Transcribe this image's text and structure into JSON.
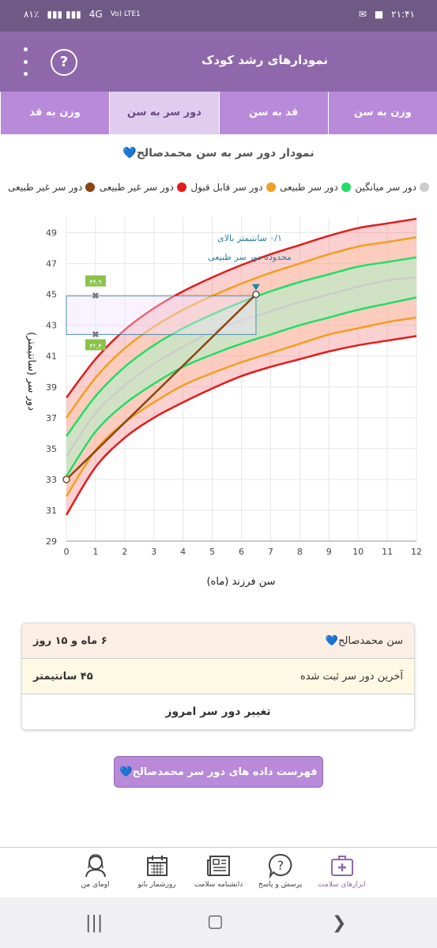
{
  "status": {
    "battery": "٨١٪",
    "network": "4G",
    "carrier": "Vo) LTE1",
    "time": "۲۱:۴۱"
  },
  "appbar": {
    "title": "نمودارهای رشد کودک",
    "help_label": "?"
  },
  "tabs": [
    {
      "label": "وزن به سن",
      "active": false
    },
    {
      "label": "قد به سن",
      "active": false
    },
    {
      "label": "دور سر به سن",
      "active": true
    },
    {
      "label": "وزن به قد",
      "active": false
    }
  ],
  "chart_title": "نمودار دور سر به سن محمدصالح💙",
  "legend": [
    {
      "label": "دور سر غیر طبیعی",
      "color": "#8b4513"
    },
    {
      "label": "دور سر غیر طبیعی",
      "color": "#e31b1b"
    },
    {
      "label": "دور سر قابل قبول",
      "color": "#f0a020"
    },
    {
      "label": "دور سر طبیعی",
      "color": "#22dd66"
    },
    {
      "label": "دور سر میانگین",
      "color": "#cccccc"
    }
  ],
  "chart_data": {
    "type": "line",
    "xlabel": "سن فرزند (ماه)",
    "ylabel": "دور سر (سانتیمتر)",
    "xlim": [
      0,
      12
    ],
    "ylim": [
      29,
      50
    ],
    "x_ticks": [
      "0",
      "1",
      "2",
      "3",
      "4",
      "5",
      "6",
      "7",
      "8",
      "9",
      "10",
      "11",
      "12"
    ],
    "y_ticks": [
      "29",
      "31",
      "33",
      "35",
      "37",
      "39",
      "41",
      "43",
      "45",
      "47",
      "49"
    ],
    "x": [
      0,
      1,
      2,
      3,
      4,
      5,
      6,
      7,
      8,
      9,
      10,
      11,
      12
    ],
    "series": [
      {
        "name": "red_low",
        "color": "#e31b1b",
        "values": [
          30.7,
          33.8,
          35.7,
          37.0,
          38.0,
          38.9,
          39.7,
          40.3,
          40.8,
          41.3,
          41.7,
          42.0,
          42.3
        ]
      },
      {
        "name": "orange_low",
        "color": "#f0a020",
        "values": [
          31.9,
          34.9,
          36.7,
          38.0,
          39.1,
          39.9,
          40.6,
          41.2,
          41.8,
          42.4,
          42.8,
          43.2,
          43.5
        ]
      },
      {
        "name": "green_low",
        "color": "#22dd66",
        "values": [
          33.2,
          36.1,
          37.9,
          39.2,
          40.3,
          41.1,
          41.8,
          42.4,
          43.0,
          43.5,
          44.0,
          44.4,
          44.8
        ]
      },
      {
        "name": "mean",
        "color": "#cccccc",
        "values": [
          34.5,
          37.3,
          39.1,
          40.5,
          41.6,
          42.6,
          43.3,
          43.9,
          44.5,
          45.0,
          45.5,
          45.9,
          46.1
        ]
      },
      {
        "name": "green_high",
        "color": "#22dd66",
        "values": [
          35.8,
          38.4,
          40.3,
          41.7,
          42.8,
          43.7,
          44.5,
          45.2,
          45.8,
          46.3,
          46.8,
          47.1,
          47.4
        ]
      },
      {
        "name": "orange_high",
        "color": "#f0a020",
        "values": [
          37.0,
          39.6,
          41.5,
          42.9,
          44.0,
          44.9,
          45.7,
          46.4,
          47.0,
          47.6,
          48.1,
          48.4,
          48.7
        ]
      },
      {
        "name": "red_high",
        "color": "#e31b1b",
        "values": [
          38.3,
          40.8,
          42.7,
          44.1,
          45.2,
          46.1,
          46.9,
          47.6,
          48.2,
          48.8,
          49.3,
          49.6,
          49.9
        ]
      }
    ],
    "child": {
      "x": [
        0,
        6.5
      ],
      "values": [
        33.0,
        45.0
      ],
      "color": "#8b4513"
    },
    "range_box": {
      "x": [
        0,
        6.5
      ],
      "y": [
        42.4,
        44.9
      ]
    },
    "range_markers": {
      "high_label": "۴۴,۹",
      "low_label": "۴۲,۴",
      "x": 1
    },
    "annotation": [
      "۰/۱ سانتیمتر بالای",
      "محدوده دور سر طبیعی"
    ]
  },
  "info": {
    "age_label": "سن محمدصالح💙",
    "age_value": "۶ ماه و ۱۵ روز",
    "last_label": "آخرین دور سر ثبت شده",
    "last_value": "۴۵ سانتیمتر",
    "change_label": "تغییر دور سر امروز"
  },
  "list_button": "فهرست داده های دور سر محمدصالح💙",
  "bottomnav": [
    {
      "label": "ابزارهای سلامت",
      "icon": "first-aid-kit-icon",
      "active": true
    },
    {
      "label": "پرسش و پاسخ",
      "icon": "question-bubble-icon",
      "active": false
    },
    {
      "label": "دانشنامه سلامت",
      "icon": "newspaper-icon",
      "active": false
    },
    {
      "label": "روزشمار بانو",
      "icon": "calendar-icon",
      "active": false
    },
    {
      "label": "اومای من",
      "icon": "woman-avatar-icon",
      "active": false
    }
  ]
}
